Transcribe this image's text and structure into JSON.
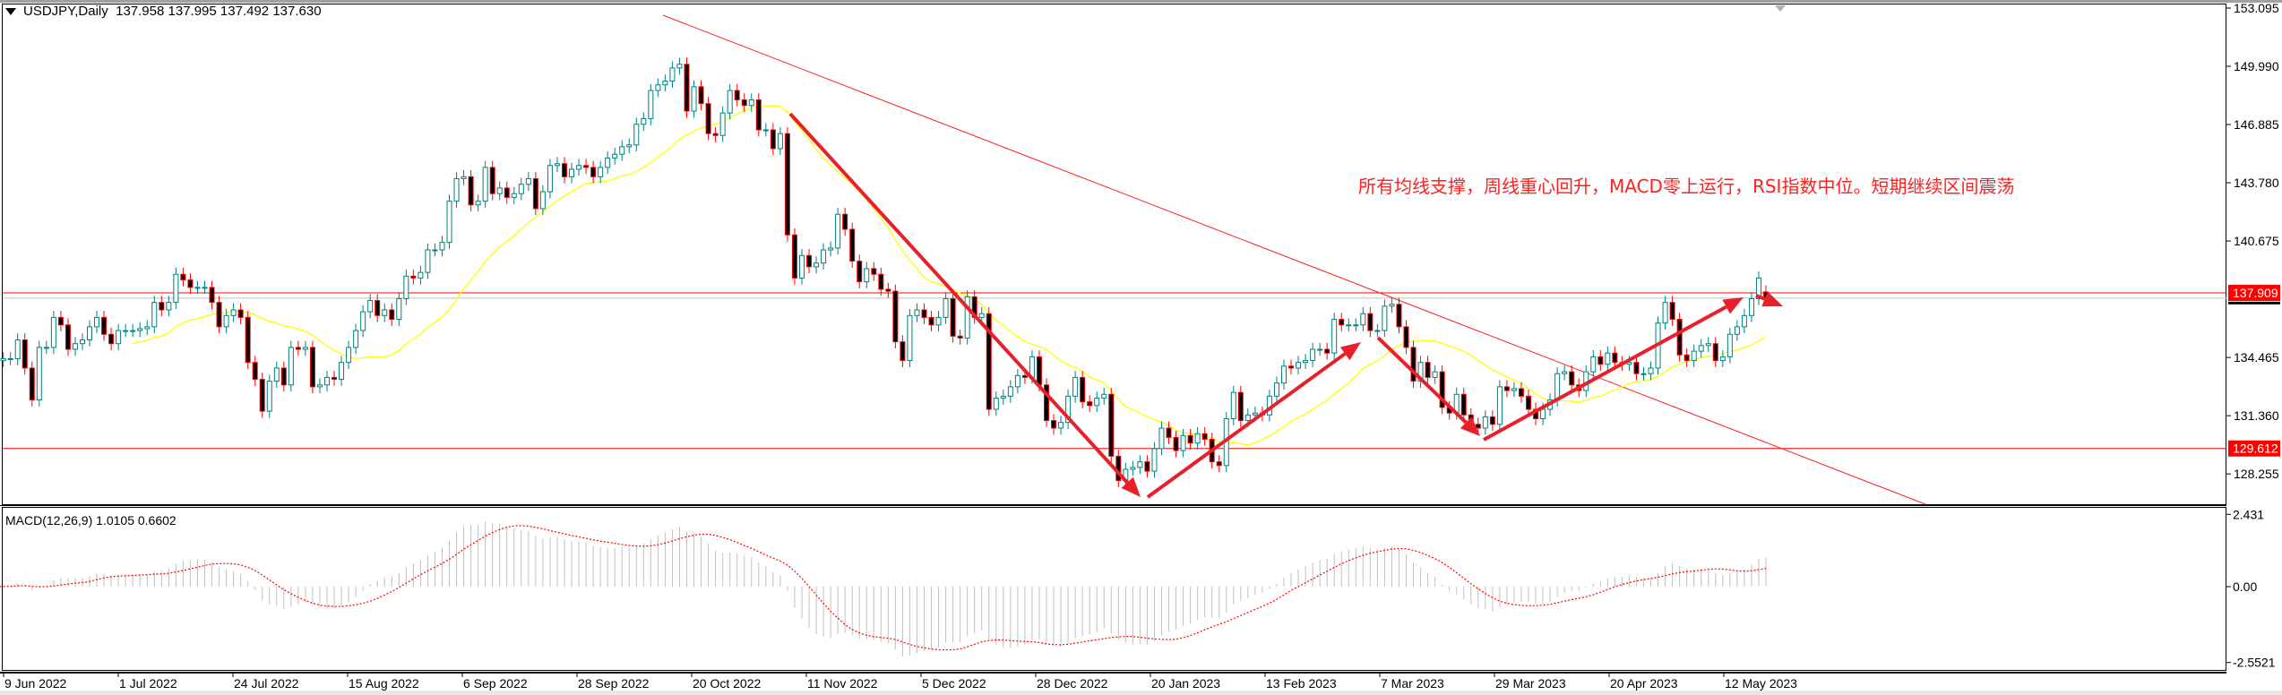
{
  "header": {
    "symbol_timeframe": "USDJPY,Daily",
    "open": "137.958",
    "high": "137.995",
    "low": "137.492",
    "close": "137.630"
  },
  "macd_label": {
    "name": "MACD(12,26,9)",
    "main": "1.0105",
    "signal": "0.6602"
  },
  "annotation": "所有均线支撑，周线重心回升，MACD零上运行，RSI指数中位。短期继续区间震荡",
  "colors": {
    "bull": "#008080",
    "bear_wick": "#ff0000",
    "bear_body": "#000000",
    "ma": "#ffff00",
    "levels": "#ff0000",
    "arrows": "#e8202a",
    "macd_hist": "#c0c0c0",
    "macd_signal": "#ff0000"
  },
  "chart_data": {
    "type": "candlestick",
    "symbol": "USDJPY",
    "timeframe": "Daily",
    "price_axis_ticks": [
      "153.095",
      "149.990",
      "146.885",
      "143.780",
      "140.675",
      "134.465",
      "131.360",
      "128.255"
    ],
    "price_range": [
      126.5,
      153.3
    ],
    "level_labels": [
      "137.909",
      "129.612"
    ],
    "levels": [
      137.909,
      129.612
    ],
    "current_price": 137.63,
    "date_ticks": [
      "9 Jun 2022",
      "1 Jul 2022",
      "24 Jul 2022",
      "15 Aug 2022",
      "6 Sep 2022",
      "28 Sep 2022",
      "20 Oct 2022",
      "11 Nov 2022",
      "5 Dec 2022",
      "28 Dec 2022",
      "20 Jan 2023",
      "13 Feb 2023",
      "7 Mar 2023",
      "29 Mar 2023",
      "20 Apr 2023",
      "12 May 2023"
    ],
    "macd_axis_ticks": [
      "2.431",
      "0.00",
      "-2.5521"
    ],
    "macd_range": [
      -2.82,
      2.76
    ],
    "moving_average_period": 20,
    "closes": [
      134.3,
      134.4,
      134.4,
      135.4,
      133.9,
      132.2,
      135.0,
      135.0,
      136.6,
      136.2,
      134.9,
      135.2,
      135.4,
      136.1,
      136.6,
      135.7,
      135.2,
      135.9,
      135.9,
      135.9,
      136.0,
      136.1,
      137.4,
      137.0,
      137.4,
      138.9,
      138.6,
      138.2,
      138.2,
      138.2,
      137.4,
      136.1,
      136.7,
      137.0,
      136.6,
      134.2,
      133.3,
      131.6,
      133.2,
      133.9,
      133.0,
      135.0,
      134.9,
      135.0,
      132.9,
      133.0,
      133.4,
      133.3,
      134.2,
      135.0,
      135.9,
      136.9,
      137.5,
      136.7,
      137.0,
      136.5,
      137.6,
      138.8,
      138.7,
      139.0,
      140.2,
      140.2,
      140.6,
      142.8,
      144.0,
      144.1,
      142.6,
      142.8,
      144.6,
      143.2,
      143.5,
      143.0,
      143.2,
      143.7,
      144.0,
      142.4,
      143.3,
      144.7,
      144.8,
      144.1,
      144.5,
      144.7,
      144.6,
      144.1,
      144.6,
      145.1,
      145.3,
      145.7,
      145.8,
      146.9,
      147.2,
      148.7,
      149.0,
      149.2,
      149.9,
      150.1,
      147.6,
      148.9,
      148.0,
      146.4,
      146.3,
      147.5,
      148.7,
      148.2,
      147.9,
      148.2,
      146.6,
      146.6,
      145.6,
      146.4,
      141.0,
      138.7,
      139.9,
      139.3,
      139.5,
      140.2,
      140.3,
      142.1,
      141.3,
      139.6,
      138.5,
      139.2,
      138.9,
      138.1,
      138.0,
      135.3,
      134.3,
      136.7,
      137.0,
      136.6,
      136.2,
      136.6,
      137.6,
      135.6,
      135.5,
      137.7,
      136.6,
      136.8,
      131.7,
      132.3,
      132.4,
      132.9,
      133.5,
      133.4,
      134.5,
      133.0,
      131.1,
      130.7,
      131.0,
      132.4,
      133.4,
      132.1,
      131.9,
      132.3,
      132.5,
      129.2,
      127.9,
      128.5,
      128.6,
      128.9,
      128.4,
      129.6,
      130.7,
      130.2,
      129.5,
      130.3,
      129.9,
      130.4,
      130.1,
      128.9,
      128.7,
      131.2,
      132.6,
      131.1,
      131.4,
      131.5,
      131.4,
      132.4,
      133.1,
      134.0,
      133.9,
      134.2,
      134.3,
      134.9,
      134.9,
      134.7,
      136.5,
      136.2,
      136.2,
      136.2,
      136.8,
      135.9,
      135.9,
      137.2,
      137.3,
      136.1,
      135.0,
      133.2,
      134.2,
      133.4,
      133.7,
      131.8,
      131.5,
      132.5,
      131.4,
      130.9,
      130.7,
      131.3,
      130.9,
      132.9,
      132.7,
      132.8,
      132.4,
      131.7,
      131.2,
      131.7,
      132.2,
      133.6,
      133.7,
      133.0,
      132.7,
      133.7,
      134.5,
      134.1,
      134.7,
      134.2,
      134.1,
      134.2,
      133.6,
      133.6,
      133.9,
      136.3,
      137.4,
      136.5,
      134.6,
      134.3,
      134.8,
      135.1,
      135.2,
      134.3,
      134.5,
      135.7,
      136.1,
      136.7,
      137.6,
      138.7,
      137.63
    ]
  }
}
